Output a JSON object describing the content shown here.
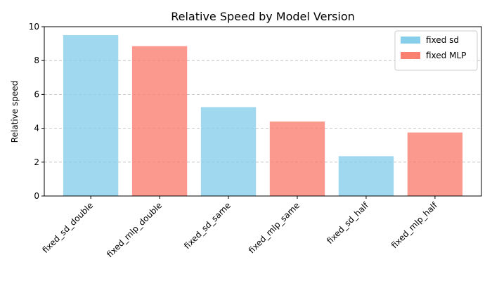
{
  "chart_data": {
    "type": "bar",
    "title": "Relative Speed by Model Version",
    "ylabel": "Relative speed",
    "categories": [
      "fixed_sd_double",
      "fixed_mlp_double",
      "fixed_sd_same",
      "fixed_mlp_same",
      "fixed_sd_half",
      "fixed_mlp_half"
    ],
    "series": [
      {
        "name": "fixed sd",
        "color": "#87ceeb",
        "values": [
          9.5,
          null,
          5.25,
          null,
          2.35,
          null
        ]
      },
      {
        "name": "fixed MLP",
        "color": "#fa8072",
        "values": [
          null,
          8.85,
          null,
          4.4,
          null,
          3.75
        ]
      }
    ],
    "ylim": [
      0,
      10
    ],
    "yticks": [
      0,
      2,
      4,
      6,
      8,
      10
    ],
    "grid": true,
    "legend": "upper right"
  }
}
